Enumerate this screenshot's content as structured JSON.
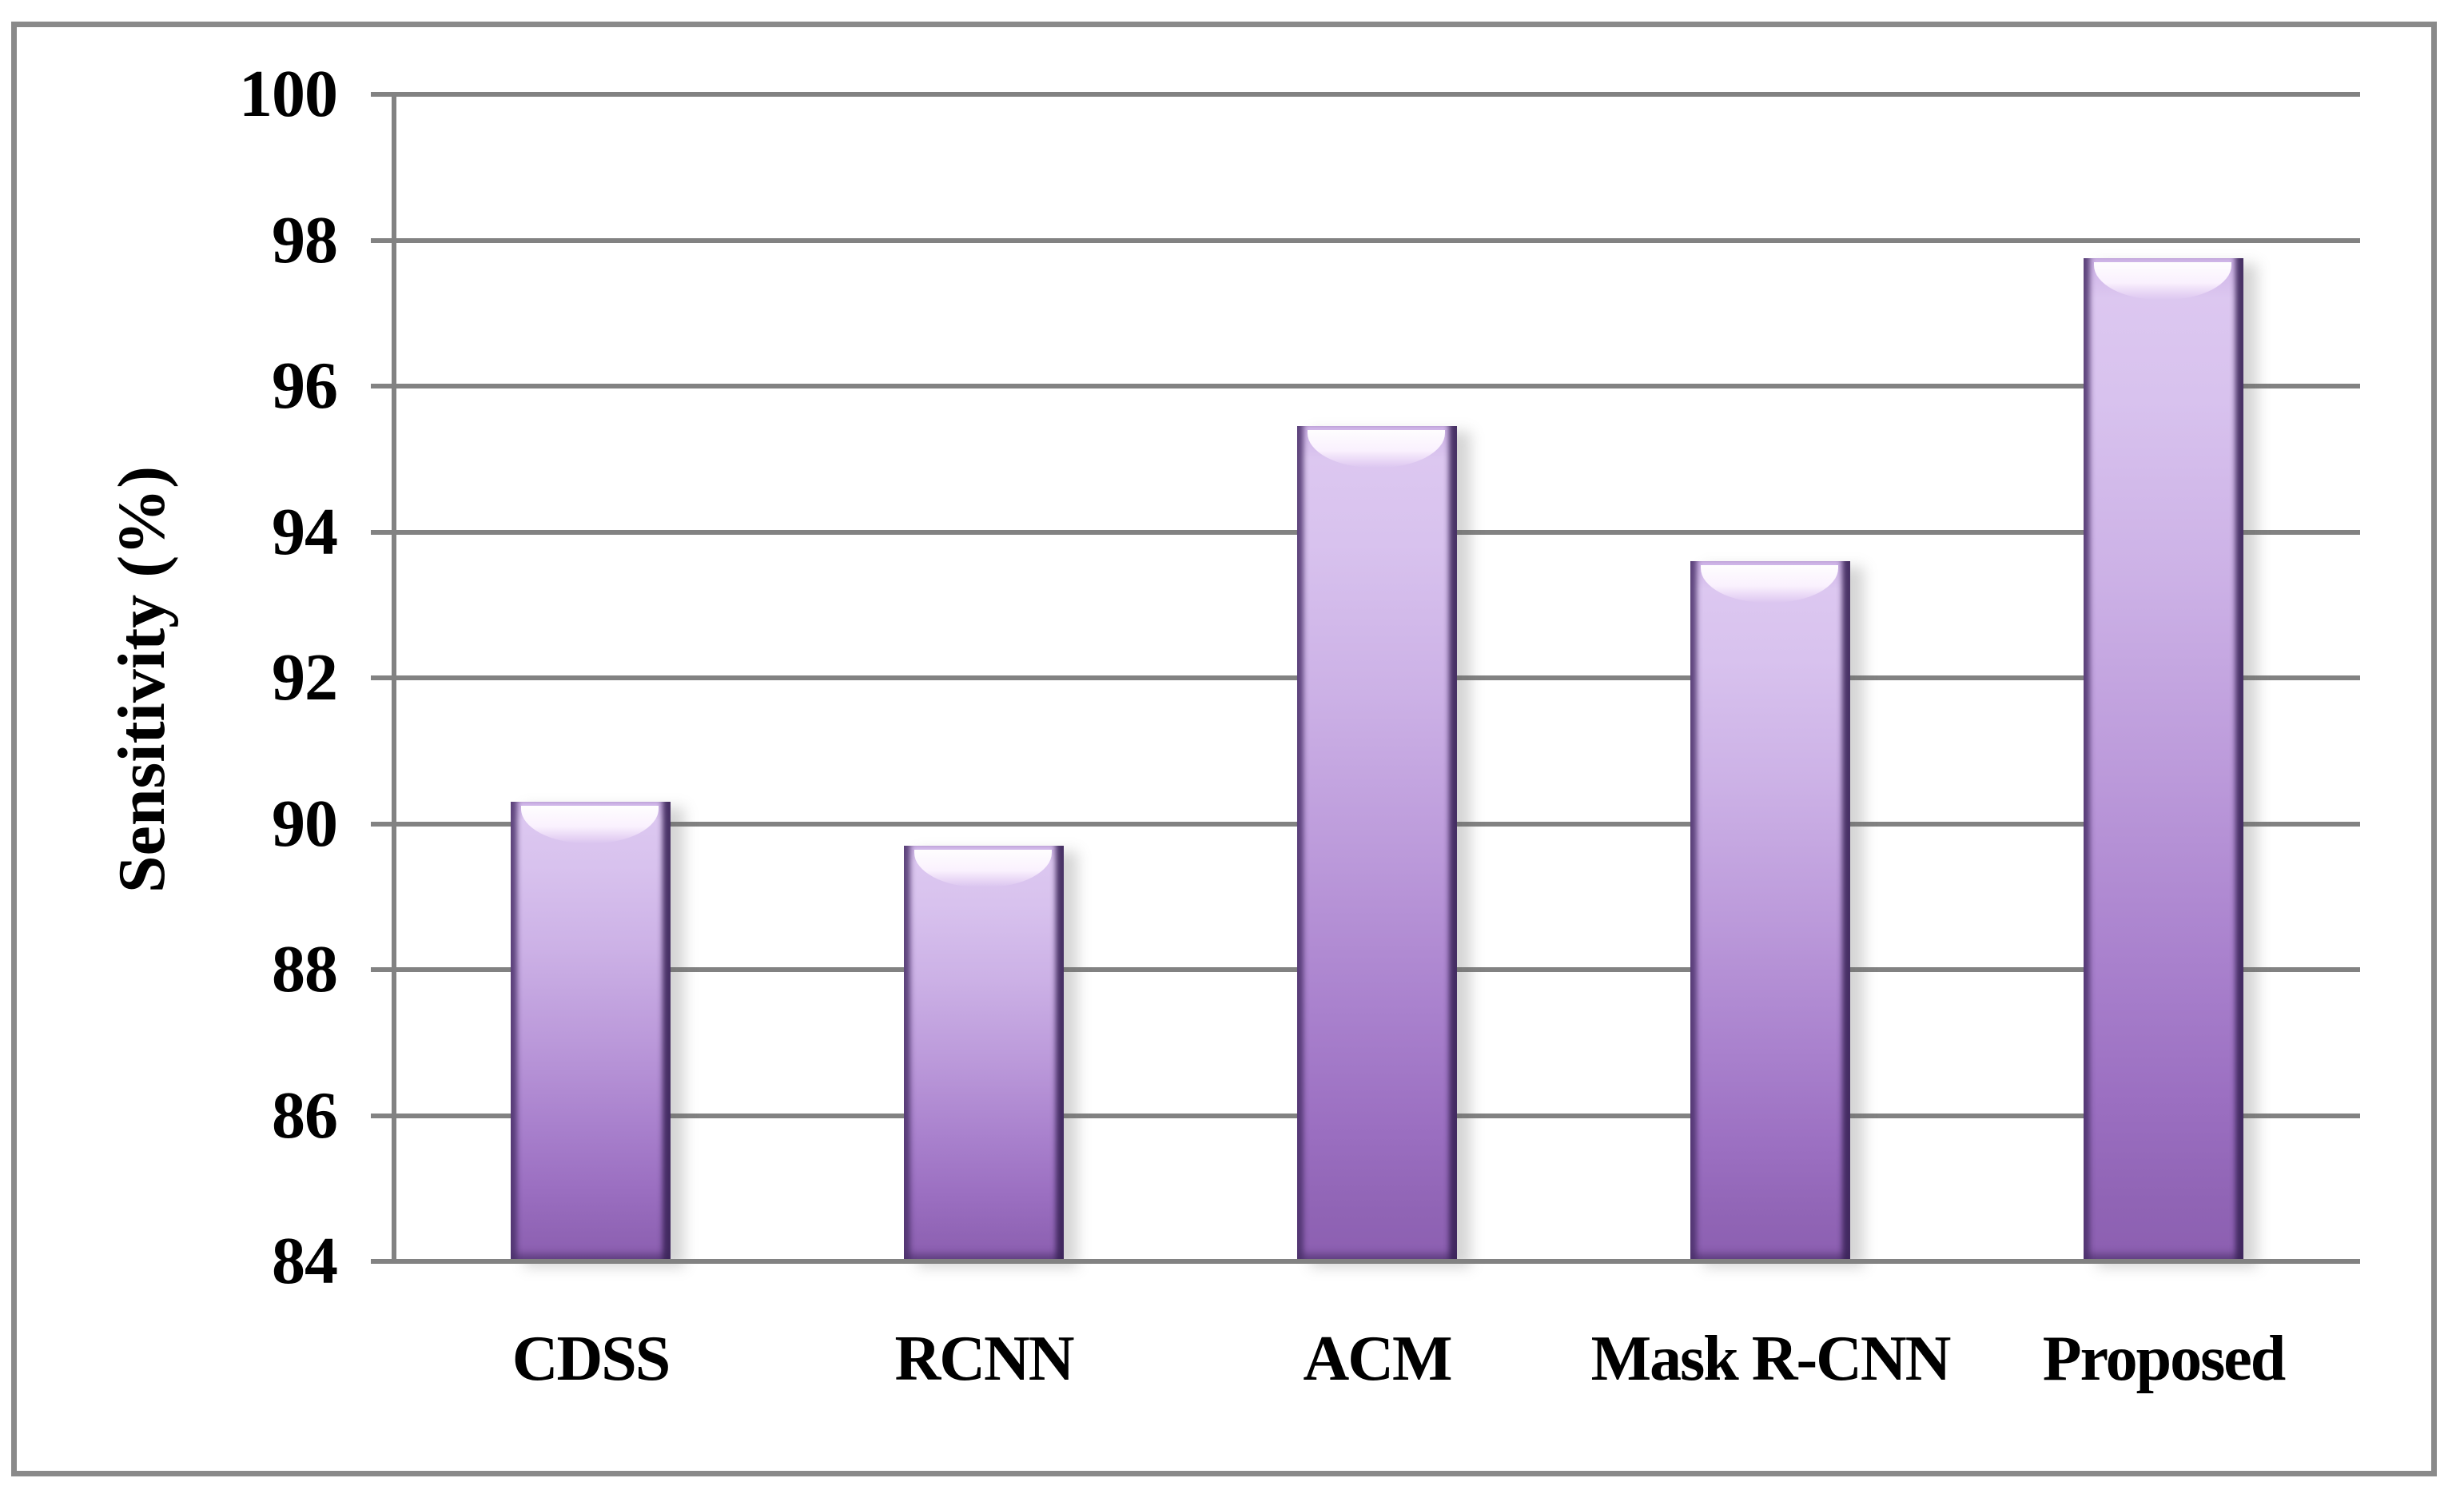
{
  "figure": {
    "background_color": "#ffffff",
    "frame_color": "#8a8a8a"
  },
  "chart_data": {
    "type": "bar",
    "title": "",
    "categories": [
      "CDSS",
      "RCNN",
      "ACM",
      "Mask R-CNN",
      "Proposed"
    ],
    "values": [
      90.3,
      89.7,
      95.45,
      93.6,
      97.75
    ],
    "ylabel": "Sensitivity (%)",
    "xlabel": "",
    "ylim": [
      84,
      100
    ],
    "ytick_step": 2,
    "ytick_labels": [
      "84",
      "86",
      "88",
      "90",
      "92",
      "94",
      "96",
      "98",
      "100"
    ],
    "grid": "horizontal",
    "gridline_color": "#828282",
    "axis_color": "#828282",
    "text_color": "#000000",
    "legend_position": "none",
    "bar_style": {
      "body_light": "#d9c3ee",
      "body_mid": "#bb99da",
      "body_dark": "#8c5fb1",
      "edge_dark": "#5b3f7c",
      "gloss_highlight": "#ffffff"
    }
  }
}
